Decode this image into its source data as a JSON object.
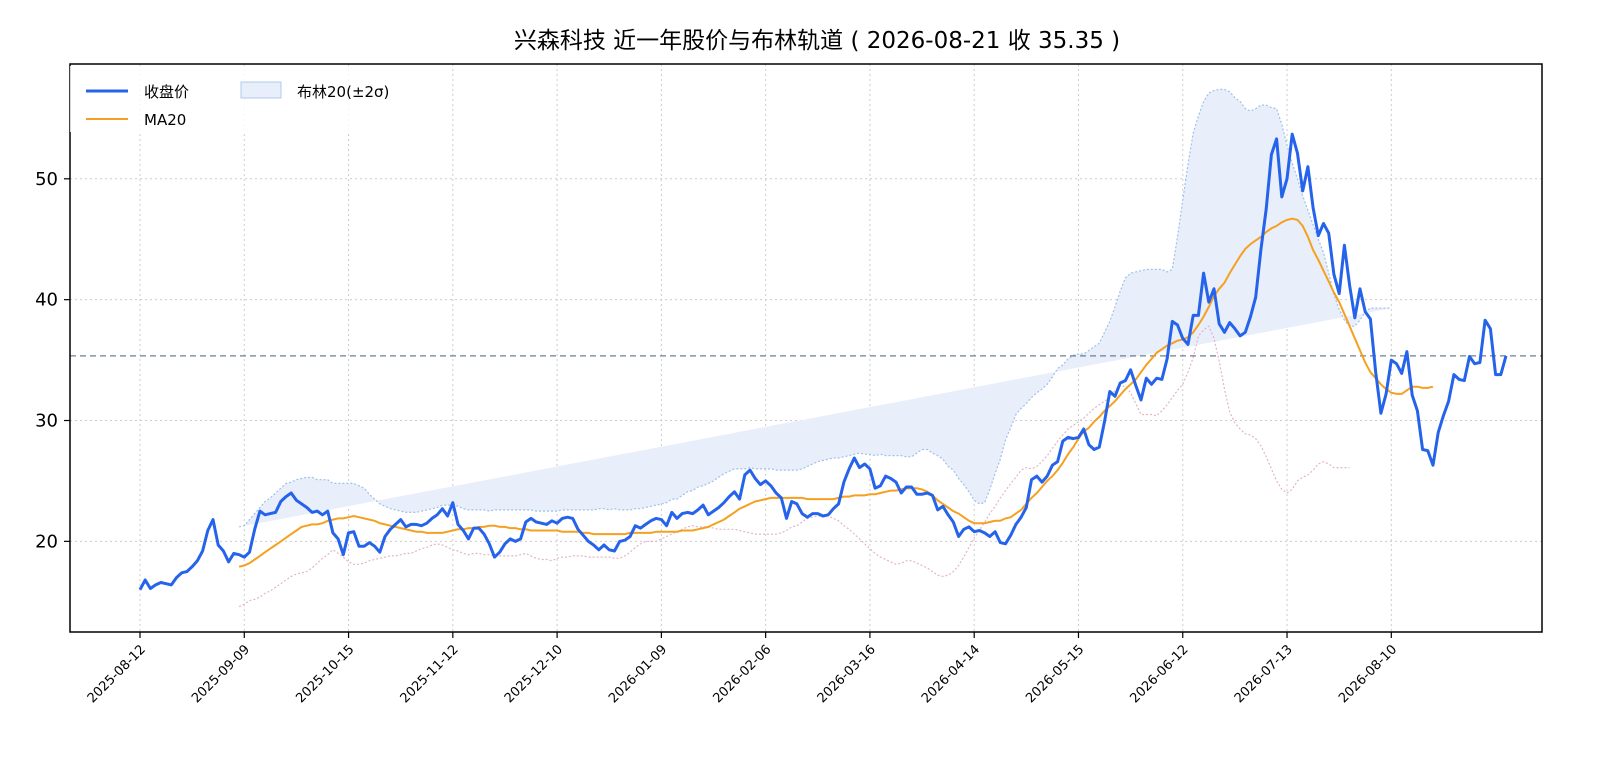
{
  "chart_data": {
    "type": "line",
    "title": "兴森科技 近一年股价与布林轨道 ( 2026-08-21 收 35.35 )",
    "xlabel": "",
    "ylabel": "",
    "ylim": [
      12.5,
      59.5
    ],
    "yticks": [
      20,
      30,
      40,
      50
    ],
    "x_ticks": [
      "2025-08-12",
      "2025-09-09",
      "2025-10-15",
      "2025-11-12",
      "2025-12-10",
      "2026-01-09",
      "2026-02-06",
      "2026-03-16",
      "2026-04-14",
      "2026-05-15",
      "2026-06-12",
      "2026-07-13",
      "2026-08-10"
    ],
    "grid": true,
    "legend": "upper-left",
    "reference_line": {
      "value": 35.35,
      "color": "#6c7f96",
      "style": "dashed"
    },
    "colors": {
      "close": "#2563eb",
      "ma": "#f5a020",
      "band_fill": "#e8eefa",
      "upper_edge": "#9dc1ea",
      "lower_edge": "#e3b4c9"
    },
    "legend_labels": {
      "close": "收盘价",
      "ma": "MA20",
      "band": "布林20(±2σ)"
    },
    "series": [
      {
        "name": "收盘价",
        "values": [
          16.0,
          16.8,
          16.1,
          16.4,
          16.6,
          16.5,
          16.4,
          17.0,
          17.4,
          17.5,
          17.9,
          18.4,
          19.2,
          20.9,
          21.8,
          19.7,
          19.2,
          18.3,
          19.0,
          18.9,
          18.7,
          19.1,
          21.0,
          22.5,
          22.2,
          22.3,
          22.4,
          23.3,
          23.7,
          24.0,
          23.4,
          23.1,
          22.8,
          22.4,
          22.5,
          22.2,
          22.5,
          20.7,
          20.2,
          18.9,
          20.7,
          20.8,
          19.6,
          19.6,
          19.9,
          19.6,
          19.1,
          20.4,
          21.0,
          21.4,
          21.8,
          21.2,
          21.4,
          21.4,
          21.3,
          21.5,
          21.9,
          22.2,
          22.7,
          22.1,
          23.2,
          21.4,
          20.9,
          20.2,
          21.1,
          21.1,
          20.6,
          19.8,
          18.7,
          19.1,
          19.8,
          20.2,
          20.0,
          20.2,
          21.6,
          21.9,
          21.6,
          21.5,
          21.4,
          21.7,
          21.5,
          21.9,
          22.0,
          21.9,
          21.0,
          20.5,
          20.0,
          19.7,
          19.3,
          19.7,
          19.3,
          19.2,
          20.0,
          20.1,
          20.4,
          21.3,
          21.1,
          21.4,
          21.7,
          21.9,
          21.8,
          21.3,
          22.4,
          21.9,
          22.3,
          22.4,
          22.3,
          22.6,
          23.0,
          22.2,
          22.5,
          22.8,
          23.2,
          23.7,
          24.1,
          23.5,
          25.5,
          25.9,
          25.2,
          24.7,
          25.0,
          24.6,
          24.0,
          23.6,
          21.9,
          23.3,
          23.1,
          22.3,
          22.0,
          22.3,
          22.3,
          22.1,
          22.2,
          22.7,
          23.1,
          24.9,
          26.0,
          26.9,
          26.1,
          26.4,
          26.0,
          24.4,
          24.6,
          25.4,
          25.2,
          24.9,
          24.0,
          24.5,
          24.5,
          23.9,
          23.9,
          24.0,
          23.8,
          22.6,
          22.9,
          22.2,
          21.6,
          20.4,
          21.0,
          21.2,
          20.8,
          20.9,
          20.7,
          20.4,
          20.8,
          19.9,
          19.8,
          20.5,
          21.4,
          22.0,
          22.8,
          25.1,
          25.4,
          24.9,
          25.4,
          26.3,
          26.6,
          28.3,
          28.6,
          28.5,
          28.6,
          29.3,
          28.0,
          27.6,
          27.8,
          29.9,
          32.4,
          32.0,
          33.1,
          33.3,
          34.2,
          32.9,
          31.7,
          33.5,
          33.0,
          33.5,
          33.4,
          35.1,
          38.2,
          37.9,
          36.8,
          36.3,
          38.7,
          38.7,
          42.2,
          39.8,
          40.9,
          38.0,
          37.3,
          38.1,
          37.6,
          37.0,
          37.3,
          38.6,
          40.2,
          44.2,
          47.5,
          52.0,
          53.3,
          48.5,
          50.0,
          53.7,
          52.1,
          49.0,
          51.0,
          47.6,
          45.3,
          46.3,
          45.5,
          42.1,
          40.5,
          44.5,
          41.2,
          38.5,
          40.9,
          39.0,
          38.4,
          34.0,
          30.6,
          32.2,
          35.0,
          34.7,
          33.9,
          35.7,
          32.1,
          30.8,
          27.6,
          27.5,
          26.3,
          29.0,
          30.4,
          31.6,
          33.8,
          33.4,
          33.3,
          35.3,
          34.7,
          34.8,
          38.3,
          37.6,
          33.8,
          33.8,
          35.35
        ]
      },
      {
        "name": "MA20",
        "values": [
          null,
          null,
          null,
          null,
          null,
          null,
          null,
          null,
          null,
          null,
          null,
          null,
          null,
          null,
          null,
          null,
          null,
          null,
          null,
          17.9,
          18.0,
          18.2,
          18.5,
          18.8,
          19.1,
          19.4,
          19.7,
          20.0,
          20.3,
          20.6,
          20.9,
          21.2,
          21.3,
          21.4,
          21.4,
          21.5,
          21.7,
          21.8,
          21.9,
          21.9,
          22.0,
          22.1,
          22.0,
          21.9,
          21.8,
          21.7,
          21.5,
          21.4,
          21.3,
          21.2,
          21.1,
          21.0,
          20.9,
          20.8,
          20.8,
          20.7,
          20.7,
          20.7,
          20.7,
          20.8,
          20.9,
          21.0,
          21.0,
          21.1,
          21.1,
          21.2,
          21.2,
          21.3,
          21.3,
          21.2,
          21.2,
          21.1,
          21.1,
          21.0,
          21.0,
          20.9,
          20.9,
          20.9,
          20.9,
          20.9,
          20.9,
          20.8,
          20.8,
          20.8,
          20.8,
          20.7,
          20.7,
          20.6,
          20.6,
          20.6,
          20.6,
          20.6,
          20.6,
          20.6,
          20.7,
          20.7,
          20.7,
          20.7,
          20.7,
          20.8,
          20.8,
          20.8,
          20.8,
          20.8,
          20.9,
          20.9,
          20.9,
          21.0,
          21.1,
          21.2,
          21.4,
          21.6,
          21.8,
          22.1,
          22.4,
          22.7,
          22.9,
          23.1,
          23.3,
          23.4,
          23.5,
          23.6,
          23.6,
          23.6,
          23.6,
          23.6,
          23.6,
          23.6,
          23.5,
          23.5,
          23.5,
          23.5,
          23.5,
          23.5,
          23.6,
          23.7,
          23.7,
          23.8,
          23.8,
          23.8,
          23.9,
          23.9,
          24.0,
          24.1,
          24.2,
          24.2,
          24.3,
          24.4,
          24.4,
          24.4,
          24.3,
          24.1,
          23.8,
          23.4,
          23.1,
          22.8,
          22.5,
          22.3,
          22.0,
          21.7,
          21.5,
          21.5,
          21.5,
          21.6,
          21.7,
          21.7,
          21.9,
          22.0,
          22.3,
          22.6,
          23.1,
          23.6,
          24.0,
          24.5,
          25.0,
          25.4,
          25.9,
          26.5,
          27.2,
          27.8,
          28.5,
          29.1,
          29.4,
          29.9,
          30.3,
          30.8,
          31.2,
          31.6,
          32.1,
          32.6,
          33.0,
          33.4,
          34.0,
          34.6,
          35.1,
          35.6,
          35.9,
          36.2,
          36.4,
          36.6,
          36.7,
          36.9,
          37.3,
          37.9,
          38.6,
          39.4,
          40.3,
          40.9,
          41.4,
          42.2,
          42.9,
          43.6,
          44.2,
          44.6,
          44.9,
          45.2,
          45.6,
          45.9,
          46.1,
          46.4,
          46.6,
          46.7,
          46.6,
          46.1,
          45.2,
          44.1,
          43.3,
          42.4,
          41.5,
          40.6,
          39.8,
          38.8,
          37.8,
          36.8,
          35.8,
          34.8,
          34.0,
          33.5,
          33.0,
          32.6,
          32.3,
          32.2,
          32.2,
          32.5,
          32.8,
          32.8,
          32.7,
          32.7,
          32.8
        ]
      },
      {
        "name": "布林上轨",
        "values": [
          null,
          null,
          null,
          null,
          null,
          null,
          null,
          null,
          null,
          null,
          null,
          null,
          null,
          null,
          null,
          null,
          null,
          null,
          null,
          21.2,
          21.3,
          21.8,
          22.3,
          22.8,
          23.3,
          23.6,
          24.0,
          24.4,
          24.8,
          24.9,
          25.1,
          25.2,
          25.3,
          25.3,
          25.1,
          25.1,
          25.1,
          24.8,
          24.8,
          24.8,
          24.8,
          24.8,
          24.6,
          24.4,
          23.9,
          23.5,
          23.1,
          22.9,
          22.7,
          22.6,
          22.5,
          22.4,
          22.4,
          22.4,
          22.5,
          22.6,
          22.7,
          22.8,
          23.0,
          23.0,
          23.0,
          22.9,
          22.7,
          22.6,
          22.6,
          22.6,
          22.6,
          22.5,
          22.6,
          22.6,
          22.6,
          22.6,
          22.6,
          22.6,
          22.6,
          22.6,
          22.5,
          22.5,
          22.5,
          22.5,
          22.5,
          22.6,
          22.6,
          22.6,
          22.6,
          22.6,
          22.6,
          22.6,
          22.7,
          22.7,
          22.6,
          22.7,
          22.6,
          22.6,
          22.6,
          22.7,
          22.7,
          22.8,
          22.9,
          23.0,
          23.1,
          23.2,
          23.5,
          23.5,
          23.8,
          24.1,
          24.2,
          24.5,
          24.6,
          24.8,
          25.0,
          25.3,
          25.6,
          25.8,
          26.0,
          26.0,
          26.0,
          26.1,
          26.0,
          26.0,
          26.0,
          26.0,
          25.9,
          25.9,
          25.9,
          25.9,
          25.9,
          26.0,
          26.2,
          26.4,
          26.6,
          26.7,
          26.8,
          26.9,
          26.9,
          27.0,
          27.1,
          27.2,
          27.3,
          27.2,
          27.2,
          27.1,
          27.2,
          27.1,
          27.1,
          27.1,
          27.1,
          27.0,
          27.0,
          27.3,
          27.6,
          27.6,
          27.3,
          27.1,
          26.8,
          26.2,
          25.9,
          25.2,
          24.7,
          24.1,
          23.4,
          23.1,
          23.2,
          24.3,
          25.6,
          26.8,
          28.4,
          29.4,
          30.5,
          31.0,
          31.4,
          31.9,
          32.3,
          32.6,
          33.0,
          33.6,
          34.3,
          34.6,
          35.1,
          35.4,
          35.5,
          35.5,
          35.8,
          36.1,
          36.4,
          37.3,
          38.2,
          39.4,
          40.7,
          41.8,
          42.2,
          42.3,
          42.4,
          42.5,
          42.5,
          42.5,
          42.5,
          42.3,
          42.5,
          45.2,
          48.2,
          51.2,
          53.8,
          55.2,
          56.4,
          57.1,
          57.3,
          57.4,
          57.4,
          57.2,
          56.7,
          56.4,
          55.8,
          55.6,
          55.8,
          56.1,
          56.1,
          55.9,
          55.8,
          54.5,
          52.8,
          51.3,
          50.0,
          48.6,
          47.4,
          46.2,
          45.0,
          43.9,
          42.2,
          40.4,
          39.2,
          38.3,
          37.8,
          37.8,
          38.3,
          39.0,
          39.3,
          39.3,
          39.3,
          39.3,
          39.3
        ]
      },
      {
        "name": "布林下轨",
        "values": [
          null,
          null,
          null,
          null,
          null,
          null,
          null,
          null,
          null,
          null,
          null,
          null,
          null,
          null,
          null,
          null,
          null,
          null,
          null,
          14.6,
          14.8,
          15.1,
          15.2,
          15.4,
          15.7,
          15.9,
          16.2,
          16.5,
          16.8,
          17.1,
          17.3,
          17.4,
          17.5,
          17.8,
          18.2,
          18.6,
          18.9,
          19.3,
          19.0,
          18.7,
          18.3,
          18.1,
          18.1,
          18.2,
          18.4,
          18.5,
          18.6,
          18.7,
          18.8,
          18.8,
          18.9,
          19.0,
          19.0,
          19.2,
          19.4,
          19.5,
          19.7,
          19.8,
          19.7,
          19.5,
          19.3,
          19.2,
          19.0,
          18.9,
          19.0,
          19.0,
          18.9,
          18.9,
          18.8,
          18.8,
          18.8,
          18.8,
          18.8,
          18.9,
          19.0,
          18.8,
          18.6,
          18.5,
          18.5,
          18.4,
          18.6,
          18.7,
          18.7,
          18.8,
          18.8,
          18.8,
          18.7,
          18.7,
          18.7,
          18.7,
          18.7,
          18.6,
          18.6,
          18.8,
          19.1,
          19.5,
          19.8,
          20.0,
          20.0,
          20.0,
          20.2,
          20.4,
          20.6,
          20.8,
          21.0,
          21.2,
          21.3,
          21.2,
          21.2,
          21.2,
          21.1,
          21.0,
          21.0,
          21.0,
          21.0,
          20.9,
          20.8,
          20.7,
          20.6,
          20.6,
          20.6,
          20.6,
          20.6,
          20.7,
          20.9,
          21.2,
          21.3,
          21.6,
          21.9,
          22.0,
          22.1,
          22.1,
          22.1,
          21.9,
          21.7,
          21.3,
          21.0,
          20.6,
          20.2,
          19.8,
          19.4,
          19.0,
          18.7,
          18.5,
          18.3,
          18.1,
          18.2,
          18.4,
          18.4,
          18.2,
          18.0,
          17.8,
          17.5,
          17.2,
          17.1,
          17.2,
          17.5,
          18.0,
          18.7,
          19.5,
          20.3,
          20.9,
          21.6,
          22.3,
          22.9,
          23.6,
          24.2,
          24.8,
          25.3,
          25.9,
          26.1,
          26.0,
          26.2,
          26.6,
          27.1,
          27.7,
          28.3,
          28.8,
          29.3,
          29.6,
          29.9,
          30.2,
          30.6,
          31.0,
          31.3,
          31.6,
          31.9,
          32.5,
          32.9,
          32.8,
          32.3,
          31.4,
          30.5,
          30.5,
          30.5,
          30.4,
          30.8,
          31.3,
          31.9,
          32.5,
          33.0,
          34.0,
          35.2,
          37.0,
          37.5,
          37.8,
          36.8,
          34.9,
          32.6,
          30.7,
          29.8,
          29.3,
          28.9,
          28.8,
          28.5,
          27.9,
          27.0,
          26.0,
          25.0,
          24.3,
          24.0,
          24.3,
          25.0,
          25.3,
          25.5,
          25.9,
          26.4,
          26.6,
          26.4,
          26.1,
          26.1,
          26.1,
          26.1
        ]
      }
    ]
  }
}
